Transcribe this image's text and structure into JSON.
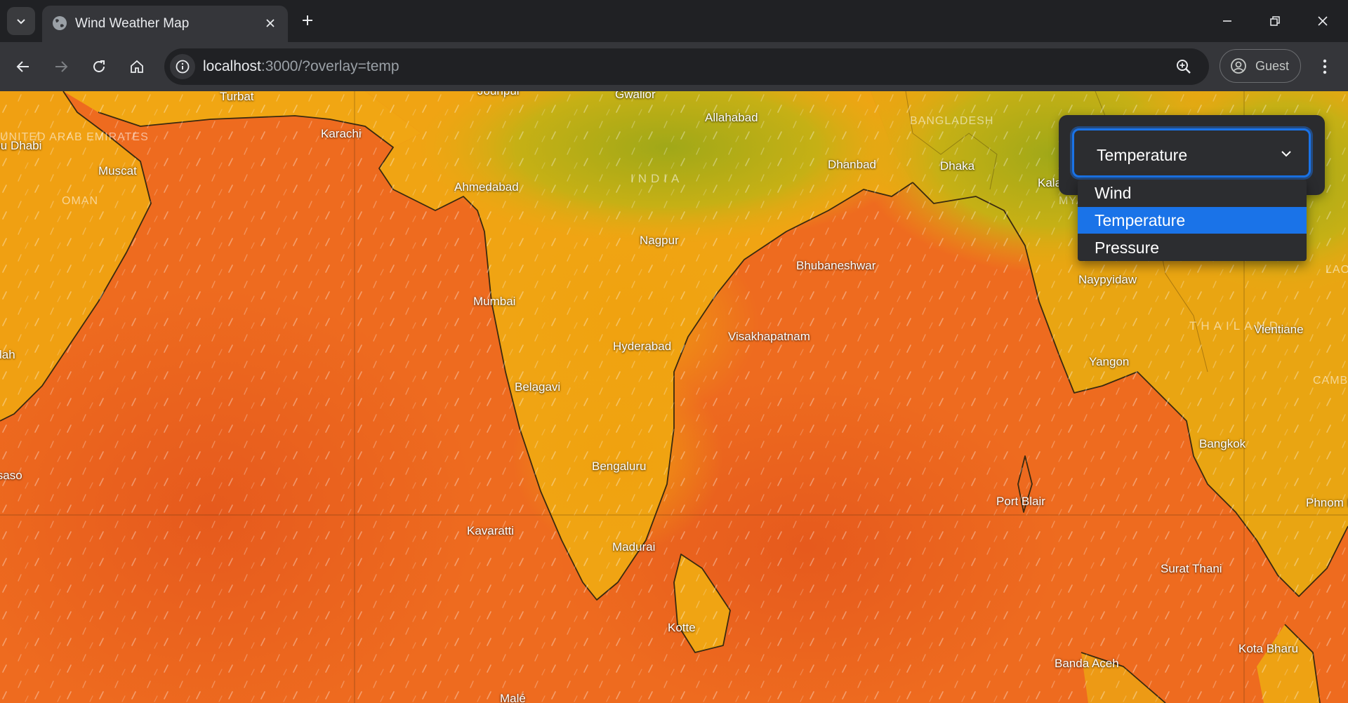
{
  "browser": {
    "tab_title": "Wind Weather Map",
    "url_host": "localhost",
    "url_rest": ":3000/?overlay=temp",
    "profile_label": "Guest"
  },
  "overlay_control": {
    "selected": "Temperature",
    "options": [
      "Wind",
      "Temperature",
      "Pressure"
    ],
    "highlighted_index": 1
  },
  "map": {
    "overlay": "temperature",
    "cities": {
      "turbat": "Turbat",
      "jodhpur": "Jodhpur",
      "gwalior": "Gwalior",
      "allahabad": "Allahabad",
      "abu_dhabi": "Abu Dhabi",
      "karachi": "Karachi",
      "muscat": "Muscat",
      "ahmedabad": "Ahmedabad",
      "dhanbad": "Dhanbad",
      "dhaka": "Dhaka",
      "kalay": "Kalay",
      "nagpur": "Nagpur",
      "bhubaneswar": "Bhubaneshwar",
      "naypyidaw": "Naypyidaw",
      "mumbai": "Mumbai",
      "salalah": "Salalah",
      "hyderabad": "Hyderabad",
      "visakhapatnam": "Visakhapatnam",
      "vientiane": "Vientiane",
      "yangon": "Yangon",
      "belagavi": "Belagavi",
      "bangkok": "Bangkok",
      "bengaluru": "Bengaluru",
      "bosaso": "Bosaso",
      "port_blair": "Port Blair",
      "phnom_penh": "Phnom Penh",
      "kavaratti": "Kavaratti",
      "madurai": "Madurai",
      "surat_thani": "Surat Thani",
      "kotte": "Kotte",
      "kota_bharu": "Kota Bharu",
      "banda_aceh": "Banda Aceh",
      "male": "Malé"
    },
    "countries": {
      "uae": "UNITED ARAB EMIRATES",
      "oman": "OMAN",
      "india": "INDIA",
      "bangladesh": "BANGLADESH",
      "myanmar": "MYANMAR",
      "thailand": "THAILAND",
      "laos": "LAOS",
      "cambodia": "CAMBODIA"
    }
  },
  "colors": {
    "accent": "#1a73e8",
    "sea_hot": "#ee6a1e",
    "land_warm": "#f1a312",
    "land_cool": "#a6a918"
  }
}
